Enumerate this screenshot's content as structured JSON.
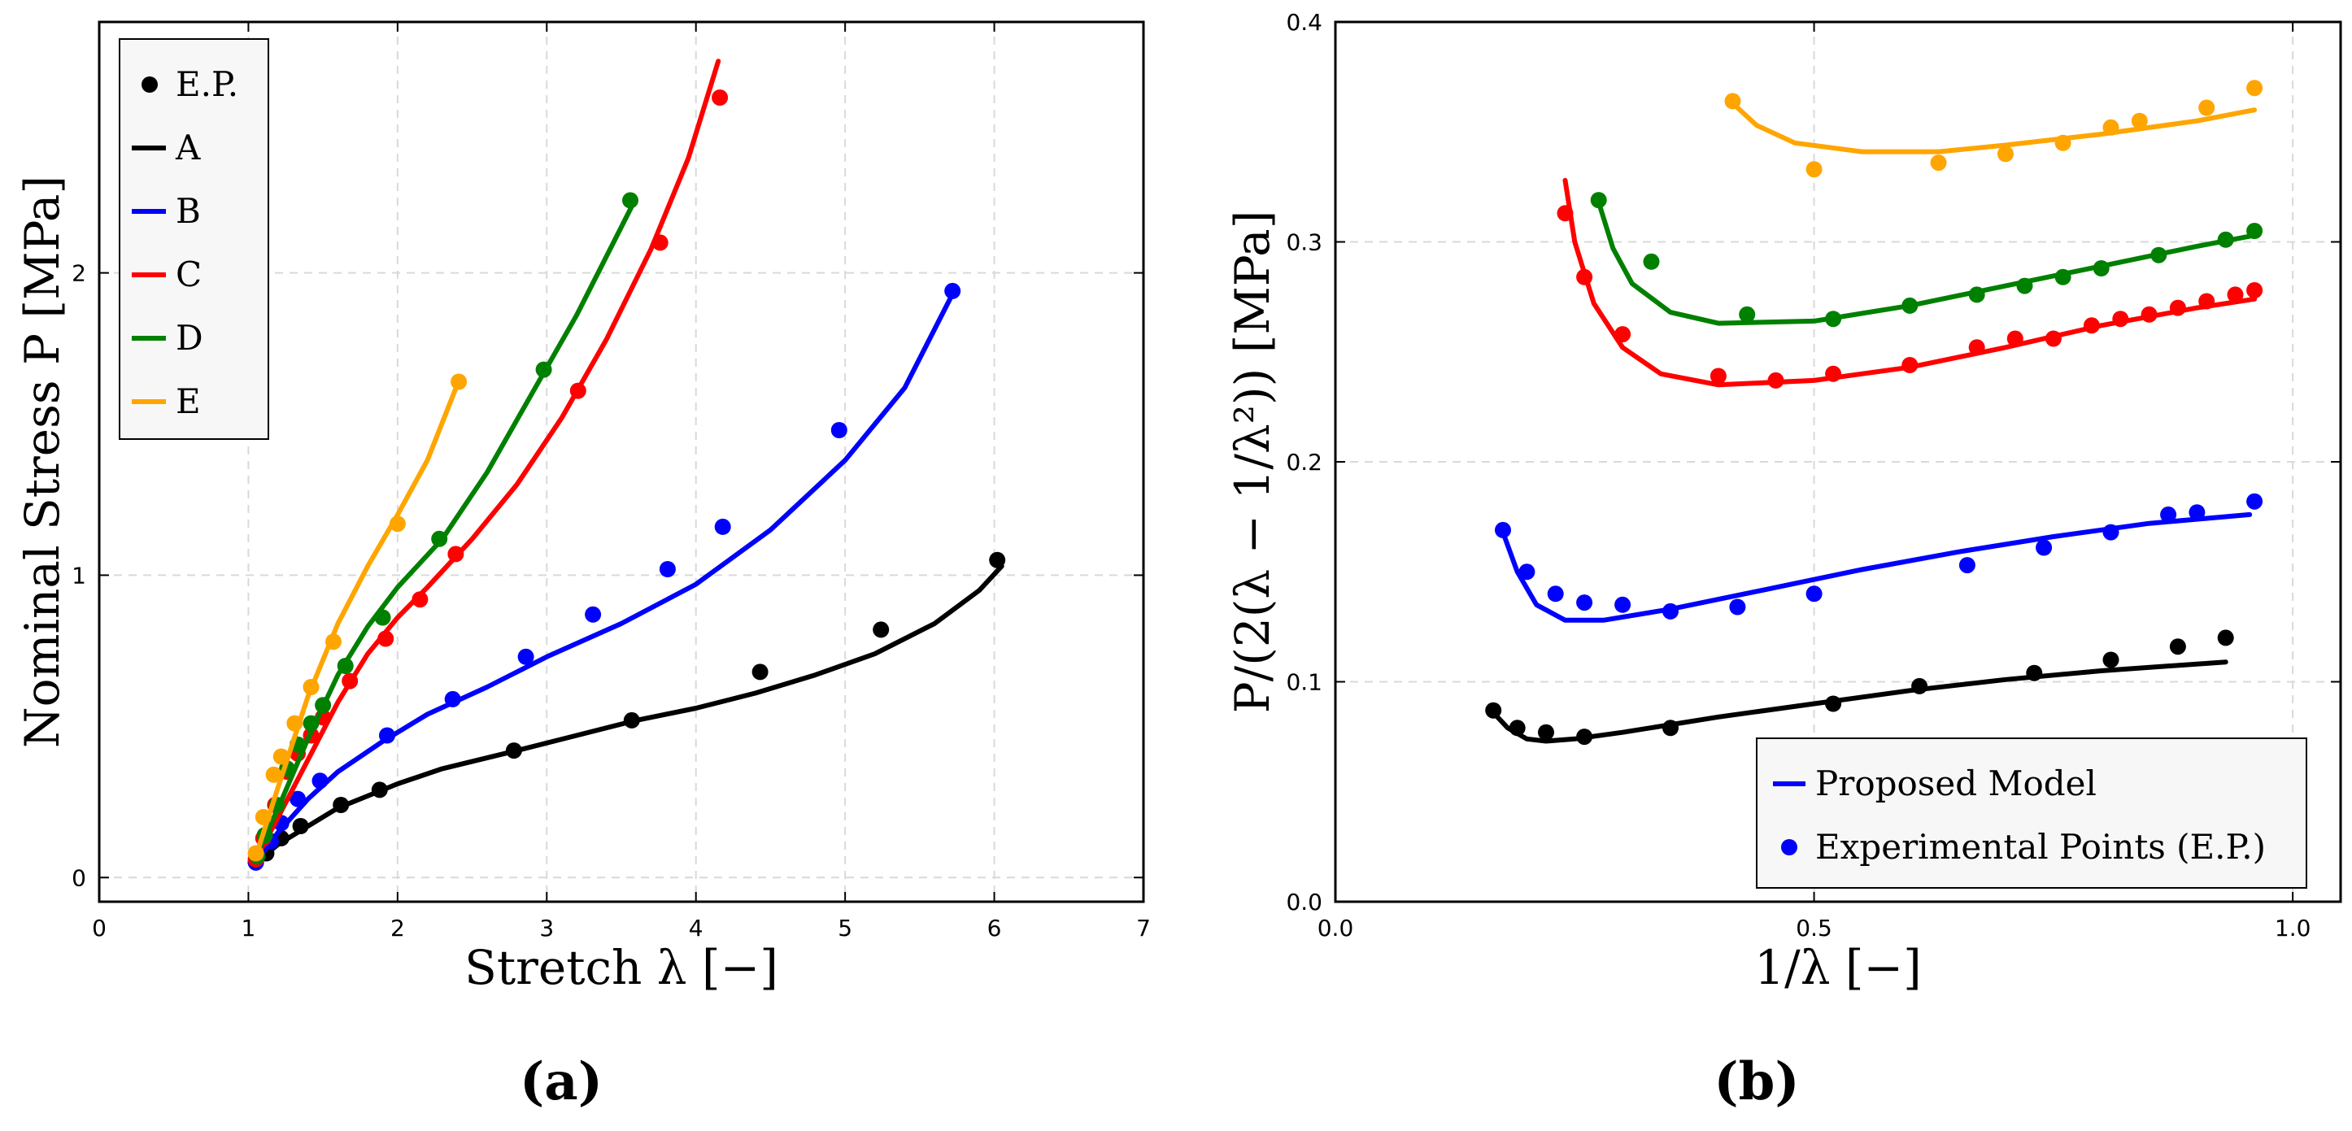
{
  "colors": {
    "A": "#000000",
    "B": "#0000ff",
    "C": "#ff0000",
    "D": "#008000",
    "E": "#ffa500"
  },
  "chart_data": [
    {
      "type": "line",
      "panel_label": "(a)",
      "xlabel": "Stretch λ [−]",
      "ylabel": "Nominal Stress P [MPa]",
      "xlim": [
        0,
        7
      ],
      "ylim": [
        -0.08,
        2.83
      ],
      "xticks": [
        "0",
        "1",
        "2",
        "3",
        "4",
        "5",
        "6",
        "7"
      ],
      "xtick_values": [
        0,
        1,
        2,
        3,
        4,
        5,
        6,
        7
      ],
      "yticks": [
        "0",
        "1",
        "2"
      ],
      "ytick_values": [
        0,
        1,
        2
      ],
      "grid": true,
      "legend": {
        "position": "upper-left",
        "entries": [
          "E.P.",
          "A",
          "B",
          "C",
          "D",
          "E"
        ],
        "marker_entry": "E.P."
      },
      "series": [
        {
          "name": "A",
          "color_key": "A",
          "curve": [
            [
              1.05,
              0.05
            ],
            [
              1.2,
              0.11
            ],
            [
              1.4,
              0.17
            ],
            [
              1.6,
              0.23
            ],
            [
              1.8,
              0.27
            ],
            [
              2.0,
              0.31
            ],
            [
              2.3,
              0.36
            ],
            [
              2.8,
              0.42
            ],
            [
              3.2,
              0.47
            ],
            [
              3.6,
              0.52
            ],
            [
              4.0,
              0.56
            ],
            [
              4.4,
              0.61
            ],
            [
              4.8,
              0.67
            ],
            [
              5.2,
              0.74
            ],
            [
              5.6,
              0.84
            ],
            [
              5.9,
              0.95
            ],
            [
              6.05,
              1.03
            ]
          ],
          "points": [
            [
              1.05,
              0.05
            ],
            [
              1.12,
              0.08
            ],
            [
              1.22,
              0.13
            ],
            [
              1.35,
              0.17
            ],
            [
              1.62,
              0.24
            ],
            [
              1.88,
              0.29
            ],
            [
              2.78,
              0.42
            ],
            [
              3.57,
              0.52
            ],
            [
              4.43,
              0.68
            ],
            [
              5.24,
              0.82
            ],
            [
              6.02,
              1.05
            ]
          ]
        },
        {
          "name": "B",
          "color_key": "B",
          "curve": [
            [
              1.05,
              0.05
            ],
            [
              1.2,
              0.15
            ],
            [
              1.4,
              0.26
            ],
            [
              1.6,
              0.35
            ],
            [
              1.9,
              0.45
            ],
            [
              2.2,
              0.54
            ],
            [
              2.6,
              0.63
            ],
            [
              3.0,
              0.73
            ],
            [
              3.5,
              0.84
            ],
            [
              4.0,
              0.97
            ],
            [
              4.5,
              1.15
            ],
            [
              5.0,
              1.38
            ],
            [
              5.4,
              1.62
            ],
            [
              5.72,
              1.93
            ]
          ],
          "points": [
            [
              1.05,
              0.05
            ],
            [
              1.15,
              0.12
            ],
            [
              1.22,
              0.18
            ],
            [
              1.33,
              0.26
            ],
            [
              1.48,
              0.32
            ],
            [
              1.93,
              0.47
            ],
            [
              2.37,
              0.59
            ],
            [
              2.86,
              0.73
            ],
            [
              3.31,
              0.87
            ],
            [
              3.81,
              1.02
            ],
            [
              4.18,
              1.16
            ],
            [
              4.96,
              1.48
            ],
            [
              5.72,
              1.94
            ]
          ]
        },
        {
          "name": "C",
          "color_key": "C",
          "curve": [
            [
              1.05,
              0.06
            ],
            [
              1.2,
              0.2
            ],
            [
              1.4,
              0.39
            ],
            [
              1.6,
              0.58
            ],
            [
              1.8,
              0.74
            ],
            [
              2.0,
              0.86
            ],
            [
              2.2,
              0.96
            ],
            [
              2.5,
              1.12
            ],
            [
              2.8,
              1.3
            ],
            [
              3.1,
              1.52
            ],
            [
              3.4,
              1.78
            ],
            [
              3.7,
              2.08
            ],
            [
              3.95,
              2.38
            ],
            [
              4.15,
              2.7
            ]
          ],
          "points": [
            [
              1.05,
              0.06
            ],
            [
              1.1,
              0.13
            ],
            [
              1.18,
              0.24
            ],
            [
              1.26,
              0.35
            ],
            [
              1.33,
              0.41
            ],
            [
              1.42,
              0.47
            ],
            [
              1.5,
              0.53
            ],
            [
              1.68,
              0.65
            ],
            [
              1.92,
              0.79
            ],
            [
              2.15,
              0.92
            ],
            [
              2.39,
              1.07
            ],
            [
              3.21,
              1.61
            ],
            [
              3.76,
              2.1
            ],
            [
              4.16,
              2.58
            ]
          ]
        },
        {
          "name": "D",
          "color_key": "D",
          "curve": [
            [
              1.05,
              0.07
            ],
            [
              1.2,
              0.23
            ],
            [
              1.4,
              0.46
            ],
            [
              1.6,
              0.67
            ],
            [
              1.8,
              0.83
            ],
            [
              2.0,
              0.96
            ],
            [
              2.3,
              1.12
            ],
            [
              2.6,
              1.34
            ],
            [
              2.9,
              1.6
            ],
            [
              3.2,
              1.86
            ],
            [
              3.58,
              2.23
            ]
          ],
          "points": [
            [
              1.06,
              0.07
            ],
            [
              1.11,
              0.14
            ],
            [
              1.19,
              0.24
            ],
            [
              1.26,
              0.36
            ],
            [
              1.33,
              0.44
            ],
            [
              1.42,
              0.51
            ],
            [
              1.5,
              0.57
            ],
            [
              1.65,
              0.7
            ],
            [
              1.9,
              0.86
            ],
            [
              2.28,
              1.12
            ],
            [
              2.98,
              1.68
            ],
            [
              3.56,
              2.24
            ]
          ]
        },
        {
          "name": "E",
          "color_key": "E",
          "curve": [
            [
              1.05,
              0.07
            ],
            [
              1.2,
              0.3
            ],
            [
              1.4,
              0.6
            ],
            [
              1.6,
              0.84
            ],
            [
              1.8,
              1.03
            ],
            [
              2.0,
              1.2
            ],
            [
              2.2,
              1.38
            ],
            [
              2.4,
              1.63
            ]
          ],
          "points": [
            [
              1.05,
              0.08
            ],
            [
              1.1,
              0.2
            ],
            [
              1.17,
              0.34
            ],
            [
              1.22,
              0.4
            ],
            [
              1.31,
              0.51
            ],
            [
              1.42,
              0.63
            ],
            [
              1.57,
              0.78
            ],
            [
              2.0,
              1.17
            ],
            [
              2.41,
              1.64
            ]
          ]
        }
      ]
    },
    {
      "type": "line",
      "panel_label": "(b)",
      "xlabel": "1/λ [−]",
      "ylabel": "P/(2(λ − 1/λ²)) [MPa]",
      "xlim": [
        0,
        1.05
      ],
      "ylim": [
        0,
        0.4
      ],
      "xticks": [
        "0.0",
        "0.5",
        "1.0"
      ],
      "xtick_values": [
        0,
        0.5,
        1.0
      ],
      "yticks": [
        "0.0",
        "0.1",
        "0.2",
        "0.3",
        "0.4"
      ],
      "ytick_values": [
        0,
        0.1,
        0.2,
        0.3,
        0.4
      ],
      "grid": true,
      "legend": {
        "position": "lower-right",
        "entries": [
          "Proposed Model",
          "Experimental Points (E.P.)"
        ]
      },
      "series": [
        {
          "name": "A",
          "color_key": "A",
          "curve": [
            [
              0.165,
              0.086
            ],
            [
              0.18,
              0.079
            ],
            [
              0.2,
              0.074
            ],
            [
              0.22,
              0.073
            ],
            [
              0.25,
              0.074
            ],
            [
              0.3,
              0.077
            ],
            [
              0.4,
              0.084
            ],
            [
              0.5,
              0.09
            ],
            [
              0.6,
              0.096
            ],
            [
              0.7,
              0.101
            ],
            [
              0.8,
              0.105
            ],
            [
              0.93,
              0.109
            ]
          ],
          "points": [
            [
              0.165,
              0.087
            ],
            [
              0.19,
              0.079
            ],
            [
              0.22,
              0.077
            ],
            [
              0.26,
              0.075
            ],
            [
              0.35,
              0.079
            ],
            [
              0.52,
              0.09
            ],
            [
              0.61,
              0.098
            ],
            [
              0.73,
              0.104
            ],
            [
              0.81,
              0.11
            ],
            [
              0.88,
              0.116
            ],
            [
              0.93,
              0.12
            ]
          ]
        },
        {
          "name": "B",
          "color_key": "B",
          "curve": [
            [
              0.175,
              0.168
            ],
            [
              0.19,
              0.15
            ],
            [
              0.21,
              0.135
            ],
            [
              0.24,
              0.128
            ],
            [
              0.28,
              0.128
            ],
            [
              0.35,
              0.133
            ],
            [
              0.45,
              0.142
            ],
            [
              0.55,
              0.151
            ],
            [
              0.65,
              0.159
            ],
            [
              0.75,
              0.166
            ],
            [
              0.85,
              0.172
            ],
            [
              0.955,
              0.176
            ]
          ],
          "points": [
            [
              0.175,
              0.169
            ],
            [
              0.2,
              0.15
            ],
            [
              0.23,
              0.14
            ],
            [
              0.26,
              0.136
            ],
            [
              0.3,
              0.135
            ],
            [
              0.35,
              0.132
            ],
            [
              0.42,
              0.134
            ],
            [
              0.5,
              0.14
            ],
            [
              0.66,
              0.153
            ],
            [
              0.74,
              0.161
            ],
            [
              0.81,
              0.168
            ],
            [
              0.87,
              0.176
            ],
            [
              0.9,
              0.177
            ],
            [
              0.96,
              0.182
            ]
          ]
        },
        {
          "name": "C",
          "color_key": "C",
          "curve": [
            [
              0.24,
              0.328
            ],
            [
              0.25,
              0.3
            ],
            [
              0.27,
              0.272
            ],
            [
              0.3,
              0.252
            ],
            [
              0.34,
              0.24
            ],
            [
              0.4,
              0.235
            ],
            [
              0.5,
              0.237
            ],
            [
              0.6,
              0.243
            ],
            [
              0.7,
              0.252
            ],
            [
              0.8,
              0.262
            ],
            [
              0.9,
              0.27
            ],
            [
              0.96,
              0.274
            ]
          ],
          "points": [
            [
              0.24,
              0.313
            ],
            [
              0.26,
              0.284
            ],
            [
              0.3,
              0.258
            ],
            [
              0.4,
              0.239
            ],
            [
              0.46,
              0.237
            ],
            [
              0.52,
              0.24
            ],
            [
              0.6,
              0.244
            ],
            [
              0.67,
              0.252
            ],
            [
              0.71,
              0.256
            ],
            [
              0.75,
              0.256
            ],
            [
              0.79,
              0.262
            ],
            [
              0.82,
              0.265
            ],
            [
              0.85,
              0.267
            ],
            [
              0.88,
              0.27
            ],
            [
              0.91,
              0.273
            ],
            [
              0.94,
              0.276
            ],
            [
              0.96,
              0.278
            ]
          ]
        },
        {
          "name": "D",
          "color_key": "D",
          "curve": [
            [
              0.275,
              0.318
            ],
            [
              0.29,
              0.297
            ],
            [
              0.31,
              0.281
            ],
            [
              0.35,
              0.268
            ],
            [
              0.4,
              0.263
            ],
            [
              0.5,
              0.264
            ],
            [
              0.6,
              0.271
            ],
            [
              0.7,
              0.28
            ],
            [
              0.8,
              0.289
            ],
            [
              0.9,
              0.298
            ],
            [
              0.96,
              0.303
            ]
          ],
          "points": [
            [
              0.275,
              0.319
            ],
            [
              0.33,
              0.291
            ],
            [
              0.43,
              0.267
            ],
            [
              0.52,
              0.265
            ],
            [
              0.6,
              0.271
            ],
            [
              0.67,
              0.276
            ],
            [
              0.72,
              0.28
            ],
            [
              0.76,
              0.284
            ],
            [
              0.8,
              0.288
            ],
            [
              0.86,
              0.294
            ],
            [
              0.93,
              0.301
            ],
            [
              0.96,
              0.305
            ]
          ]
        },
        {
          "name": "E",
          "color_key": "E",
          "curve": [
            [
              0.415,
              0.363
            ],
            [
              0.44,
              0.353
            ],
            [
              0.48,
              0.345
            ],
            [
              0.55,
              0.341
            ],
            [
              0.63,
              0.341
            ],
            [
              0.7,
              0.344
            ],
            [
              0.8,
              0.349
            ],
            [
              0.9,
              0.355
            ],
            [
              0.96,
              0.36
            ]
          ],
          "points": [
            [
              0.415,
              0.364
            ],
            [
              0.5,
              0.333
            ],
            [
              0.63,
              0.336
            ],
            [
              0.7,
              0.34
            ],
            [
              0.76,
              0.345
            ],
            [
              0.81,
              0.352
            ],
            [
              0.84,
              0.355
            ],
            [
              0.91,
              0.361
            ],
            [
              0.96,
              0.37
            ]
          ]
        }
      ]
    }
  ]
}
